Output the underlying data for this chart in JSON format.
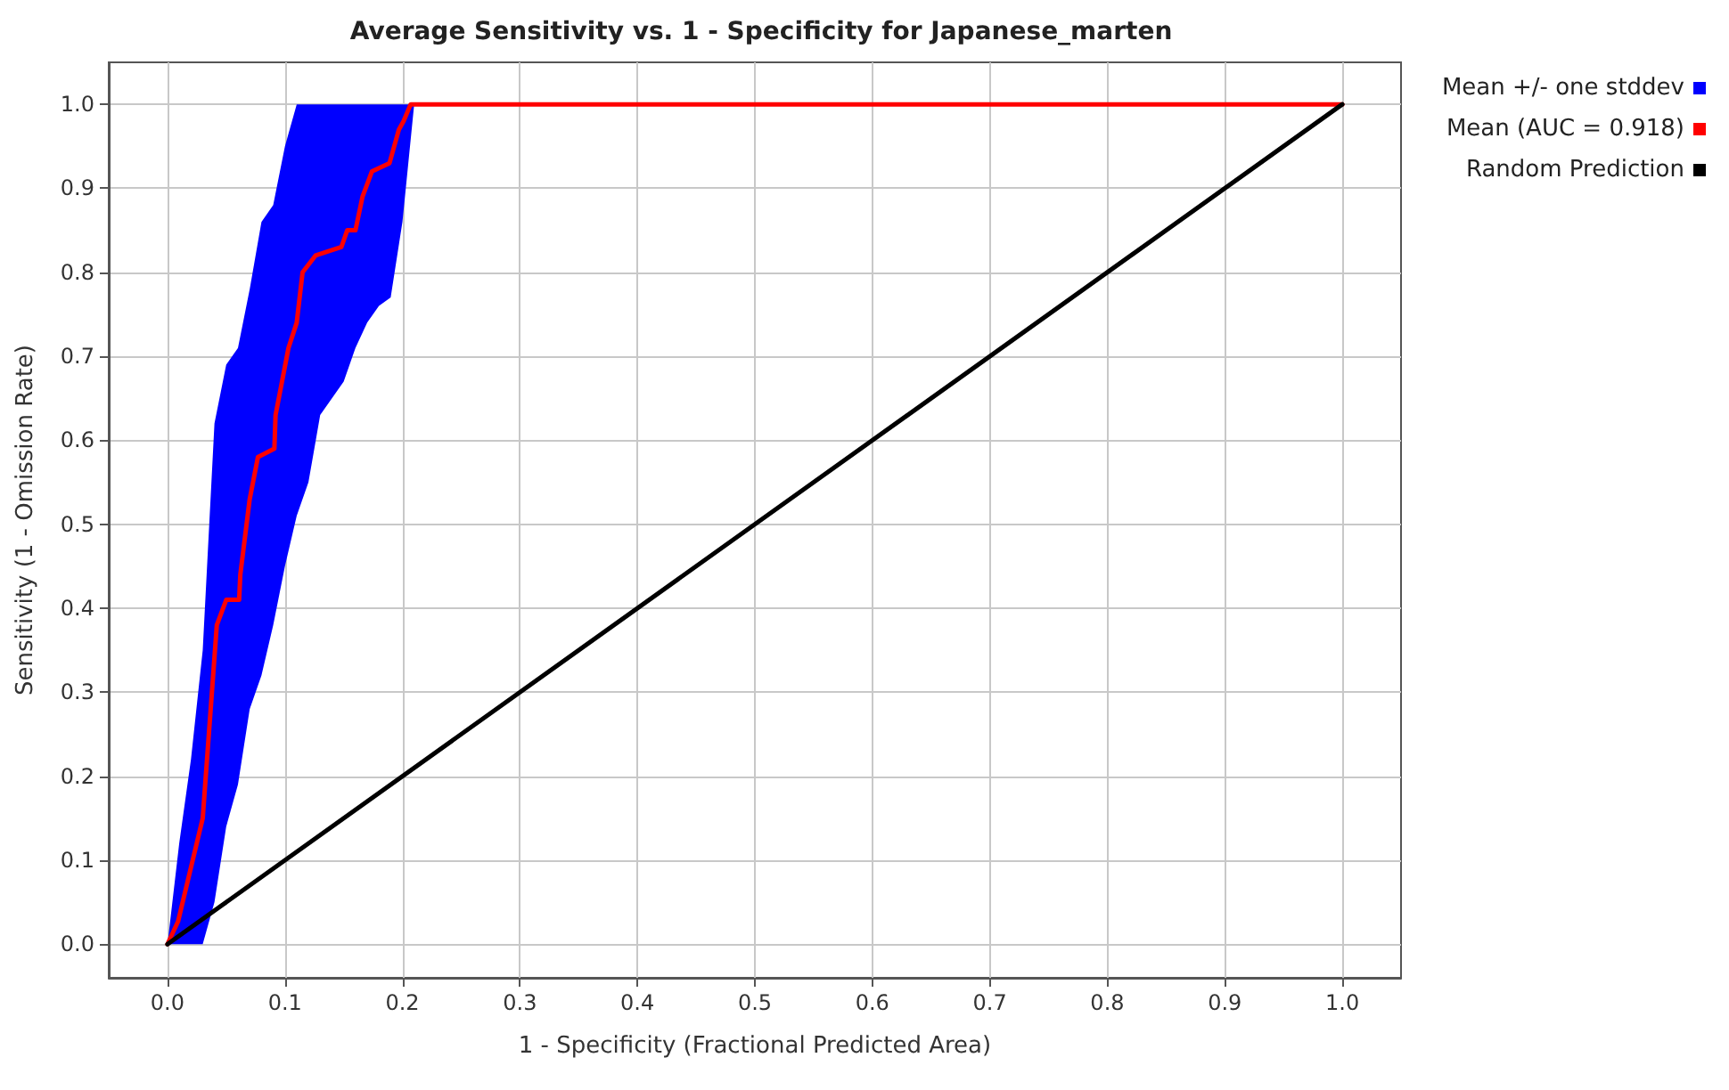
{
  "chart_data": {
    "type": "line",
    "title": "Average Sensitivity vs. 1 - Specificity for Japanese_marten",
    "xlabel": "1 - Specificity (Fractional Predicted Area)",
    "ylabel": "Sensitivity (1 - Omission Rate)",
    "xlim": [
      -0.05,
      1.05
    ],
    "ylim": [
      -0.04,
      1.05
    ],
    "xticks": [
      {
        "value": 0,
        "label": "0.0"
      },
      {
        "value": 0.1,
        "label": "0.1"
      },
      {
        "value": 0.2,
        "label": "0.2"
      },
      {
        "value": 0.3,
        "label": "0.3"
      },
      {
        "value": 0.4,
        "label": "0.4"
      },
      {
        "value": 0.5,
        "label": "0.5"
      },
      {
        "value": 0.6,
        "label": "0.6"
      },
      {
        "value": 0.7,
        "label": "0.7"
      },
      {
        "value": 0.8,
        "label": "0.8"
      },
      {
        "value": 0.9,
        "label": "0.9"
      },
      {
        "value": 1,
        "label": "1.0"
      }
    ],
    "yticks": [
      {
        "value": 0,
        "label": "0.0"
      },
      {
        "value": 0.1,
        "label": "0.1"
      },
      {
        "value": 0.2,
        "label": "0.2"
      },
      {
        "value": 0.3,
        "label": "0.3"
      },
      {
        "value": 0.4,
        "label": "0.4"
      },
      {
        "value": 0.5,
        "label": "0.5"
      },
      {
        "value": 0.6,
        "label": "0.6"
      },
      {
        "value": 0.7,
        "label": "0.7"
      },
      {
        "value": 0.8,
        "label": "0.8"
      },
      {
        "value": 0.9,
        "label": "0.9"
      },
      {
        "value": 1,
        "label": "1.0"
      }
    ],
    "grid": true,
    "legend": "right",
    "marker": "none",
    "line_style": "solid",
    "series": [
      {
        "name": "Mean +/- one stddev",
        "color": "#0000ff",
        "x": [
          0,
          0.01,
          0.02,
          0.03,
          0.04,
          0.05,
          0.06,
          0.07,
          0.08,
          0.09,
          0.1,
          0.11,
          0.12,
          0.13,
          0.14,
          0.15,
          0.16,
          0.17,
          0.18,
          0.19,
          0.2,
          0.21
        ],
        "values": [
          null,
          null,
          null,
          null,
          null,
          null,
          null,
          null,
          null,
          null,
          null,
          null,
          null,
          null,
          null,
          null,
          null,
          null,
          null,
          null,
          null,
          null
        ],
        "lower": [
          0,
          0,
          0,
          0,
          0.05,
          0.14,
          0.19,
          0.28,
          0.32,
          0.38,
          0.45,
          0.51,
          0.55,
          0.63,
          0.65,
          0.67,
          0.71,
          0.74,
          0.76,
          0.77,
          0.86,
          1
        ],
        "upper": [
          0,
          0.12,
          0.22,
          0.35,
          0.62,
          0.69,
          0.71,
          0.78,
          0.86,
          0.88,
          0.95,
          1,
          1,
          1,
          1,
          1,
          1,
          1,
          1,
          1,
          1,
          1
        ]
      },
      {
        "name": "Mean (AUC = 0.918)",
        "color": "#ff0000",
        "x": [
          0,
          0.009,
          0.03,
          0.042,
          0.05,
          0.061,
          0.062,
          0.07,
          0.077,
          0.091,
          0.092,
          0.103,
          0.11,
          0.115,
          0.126,
          0.148,
          0.153,
          0.16,
          0.166,
          0.174,
          0.189,
          0.197,
          0.201,
          0.207,
          1
        ],
        "values": [
          0,
          0.027,
          0.15,
          0.38,
          0.41,
          0.41,
          0.44,
          0.53,
          0.58,
          0.59,
          0.63,
          0.71,
          0.74,
          0.8,
          0.82,
          0.83,
          0.85,
          0.85,
          0.89,
          0.92,
          0.93,
          0.97,
          0.98,
          1,
          1
        ]
      },
      {
        "name": "Random Prediction",
        "color": "#000000",
        "x": [
          0,
          1
        ],
        "values": [
          0,
          1
        ]
      }
    ]
  }
}
